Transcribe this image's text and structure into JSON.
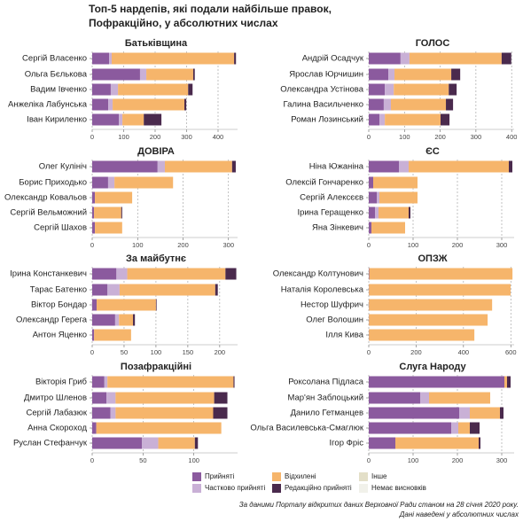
{
  "title_lines": [
    "Топ-5 нардепів, які подали найбільше правок,",
    "Пофракційно, у абсолютних числах"
  ],
  "series": [
    {
      "name": "Прийняті",
      "color": "#8b5a9e"
    },
    {
      "name": "Частково прийняті",
      "color": "#c9b0d6"
    },
    {
      "name": "Відхилені",
      "color": "#f6b56b"
    },
    {
      "name": "Редакційно прийняті",
      "color": "#4a2a4d"
    },
    {
      "name": "Інше",
      "color": "#e3dfc8"
    },
    {
      "name": "Немає висновків",
      "color": "#f1f1ea"
    }
  ],
  "notes": [
    "За даними Порталу відкритих даних Верховної Ради станом на 28 січня 2020 року.",
    "Дані наведені у абсолютних числах"
  ],
  "chart_data": [
    {
      "type": "bar",
      "orientation": "horizontal",
      "stacked": true,
      "grid": true,
      "title": "Батьківщина",
      "categories": [
        "Сергій Власенко",
        "Ольга Бєлькова",
        "Вадим Івченко",
        "Анжеліка Лабунська",
        "Іван Кириленко"
      ],
      "values": [
        [
          54,
          8,
          389,
          6,
          0,
          0
        ],
        [
          152,
          20,
          149,
          5,
          0,
          0
        ],
        [
          59,
          23,
          223,
          14,
          0,
          0
        ],
        [
          51,
          14,
          228,
          6,
          0,
          0
        ],
        [
          85,
          11,
          68,
          56,
          0,
          0
        ]
      ],
      "xlim": [
        0,
        462
      ],
      "xticks": [
        0,
        100,
        200,
        300,
        400
      ]
    },
    {
      "type": "bar",
      "orientation": "horizontal",
      "stacked": true,
      "grid": true,
      "title": "ГОЛОС",
      "categories": [
        "Андрій Осадчук",
        "Ярослав Юрчишин",
        "Олександра Устінова",
        "Галина Васильченко",
        "Роман Лозинський"
      ],
      "values": [
        [
          89,
          25,
          258,
          27,
          0,
          0
        ],
        [
          55,
          17,
          159,
          25,
          0,
          0
        ],
        [
          45,
          25,
          154,
          22,
          0,
          0
        ],
        [
          42,
          20,
          154,
          20,
          0,
          0
        ],
        [
          30,
          15,
          156,
          25,
          0,
          0
        ]
      ],
      "xlim": [
        0,
        407
      ],
      "xticks": [
        0,
        100,
        200,
        300,
        400
      ]
    },
    {
      "type": "bar",
      "orientation": "horizontal",
      "stacked": true,
      "grid": true,
      "title": "ДОВІРА",
      "categories": [
        "Олег Кулініч",
        "Борис Приходько",
        "Олександр Ковальов",
        "Сергій Вельможний",
        "Сергій Шахов"
      ],
      "values": [
        [
          144,
          16,
          148,
          8,
          0,
          0
        ],
        [
          35,
          14,
          129,
          0,
          0,
          0
        ],
        [
          6,
          0,
          82,
          0,
          0,
          0
        ],
        [
          4,
          0,
          60,
          2,
          0,
          0
        ],
        [
          6,
          0,
          60,
          0,
          0,
          0
        ]
      ],
      "xlim": [
        0,
        320
      ],
      "xticks": [
        0,
        100,
        200,
        300
      ]
    },
    {
      "type": "bar",
      "orientation": "horizontal",
      "stacked": true,
      "grid": true,
      "title": "ЄС",
      "categories": [
        "Ніна Южаніна",
        "Олексій Гончаренко",
        "Сергій Алексєєв",
        "Ірина Геращенко",
        "Яна Зінкевич"
      ],
      "values": [
        [
          68,
          22,
          226,
          8,
          0,
          0
        ],
        [
          10,
          0,
          100,
          0,
          0,
          0
        ],
        [
          18,
          6,
          86,
          0,
          0,
          0
        ],
        [
          14,
          8,
          68,
          4,
          0,
          0
        ],
        [
          6,
          0,
          76,
          0,
          0,
          0
        ]
      ],
      "xlim": [
        0,
        328
      ],
      "xticks": [
        0,
        100,
        200,
        300
      ]
    },
    {
      "type": "bar",
      "orientation": "horizontal",
      "stacked": true,
      "grid": true,
      "title": "За майбутнє",
      "categories": [
        "Ірина Констанкевич",
        "Тарас Батенко",
        "Віктор Бондар",
        "Олександр Герега",
        "Антон Яценко"
      ],
      "values": [
        [
          38,
          17,
          154,
          17,
          0,
          0
        ],
        [
          24,
          19,
          150,
          4,
          0,
          0
        ],
        [
          7,
          0,
          93,
          1,
          0,
          0
        ],
        [
          36,
          6,
          22,
          3,
          0,
          0
        ],
        [
          3,
          0,
          58,
          0,
          0,
          0
        ]
      ],
      "xlim": [
        0,
        228
      ],
      "xticks": [
        0,
        50,
        100,
        150,
        200
      ]
    },
    {
      "type": "bar",
      "orientation": "horizontal",
      "stacked": true,
      "grid": true,
      "title": "ОПЗЖ",
      "categories": [
        "Олександр Колтунович",
        "Наталія Королевська",
        "Нестор Шуфрич",
        "Олег Волошин",
        "Ілля Кива"
      ],
      "values": [
        [
          2,
          0,
          605,
          0,
          0,
          0
        ],
        [
          1,
          0,
          598,
          0,
          0,
          0
        ],
        [
          1,
          0,
          520,
          0,
          0,
          0
        ],
        [
          1,
          0,
          501,
          0,
          0,
          0
        ],
        [
          1,
          0,
          445,
          0,
          0,
          0
        ]
      ],
      "xlim": [
        0,
        614
      ],
      "xticks": [
        0,
        200,
        400,
        600
      ]
    },
    {
      "type": "bar",
      "orientation": "horizontal",
      "stacked": true,
      "grid": true,
      "title": "Позафракційні",
      "categories": [
        "Вікторія Гриб",
        "Дмитро Шленов",
        "Сергій Лабазюк",
        "Анна Скороход",
        "Руслан Стефанчук"
      ],
      "values": [
        [
          12,
          3,
          124,
          1,
          0,
          0
        ],
        [
          14,
          9,
          97,
          13,
          0,
          0
        ],
        [
          18,
          5,
          96,
          14,
          0,
          0
        ],
        [
          4,
          0,
          123,
          0,
          0,
          0
        ],
        [
          49,
          16,
          36,
          3,
          0,
          0
        ]
      ],
      "xlim": [
        0,
        143
      ],
      "xticks": [
        0,
        50,
        100
      ]
    },
    {
      "type": "bar",
      "orientation": "horizontal",
      "stacked": true,
      "grid": true,
      "title": "Слуга Народу",
      "categories": [
        "Роксолана Підласа",
        "Мар'ян Заблоцький",
        "Данило Гетманцев",
        "Ольга Василевська-Смаглюк",
        "Ігор Фріс"
      ],
      "values": [
        [
          306,
          0,
          6,
          8,
          0,
          0
        ],
        [
          116,
          20,
          138,
          0,
          0,
          0
        ],
        [
          204,
          24,
          68,
          8,
          0,
          0
        ],
        [
          186,
          16,
          26,
          22,
          0,
          0
        ],
        [
          60,
          0,
          188,
          4,
          0,
          0
        ]
      ],
      "xlim": [
        0,
        328
      ],
      "xticks": [
        0,
        100,
        200,
        300
      ]
    }
  ]
}
